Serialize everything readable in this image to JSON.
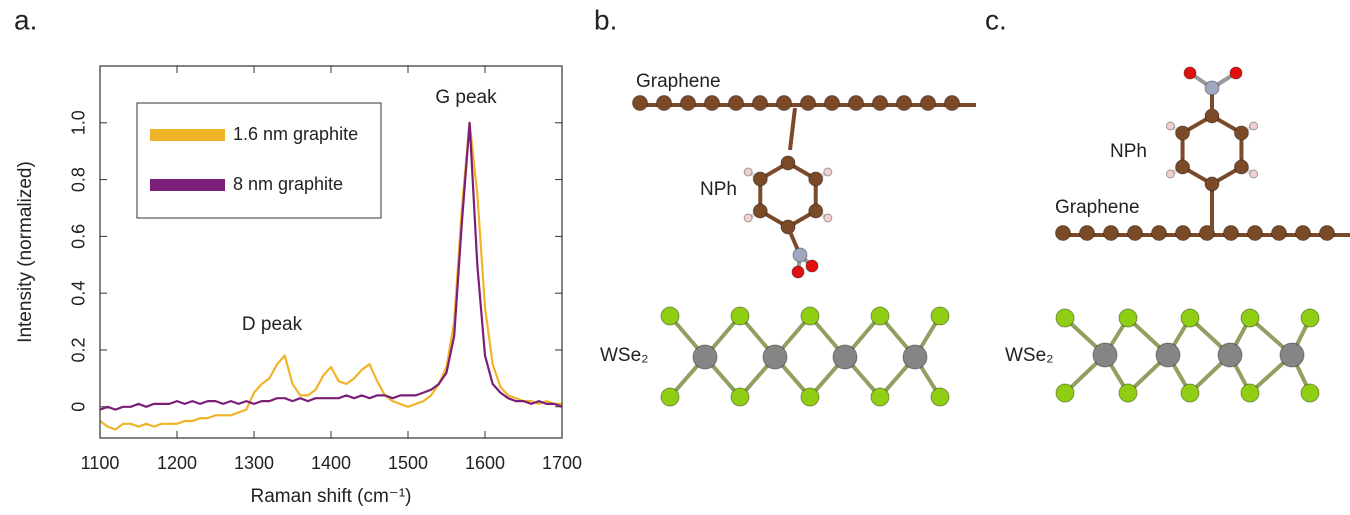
{
  "panel_labels": [
    "a.",
    "b.",
    "c."
  ],
  "panel_b": {
    "labels": [
      "Graphene",
      "NPh",
      "WSe₂"
    ]
  },
  "panel_c": {
    "labels": [
      "NPh",
      "Graphene",
      "WSe₂"
    ]
  },
  "chart_data": {
    "type": "line",
    "xlabel": "Raman shift (cm⁻¹)",
    "ylabel": "Intensity (normalized)",
    "annotations": [
      "D peak",
      "G peak"
    ],
    "x": [
      1100,
      1110,
      1120,
      1130,
      1140,
      1150,
      1160,
      1170,
      1180,
      1190,
      1200,
      1210,
      1220,
      1230,
      1240,
      1250,
      1260,
      1270,
      1280,
      1290,
      1300,
      1310,
      1320,
      1330,
      1340,
      1350,
      1360,
      1370,
      1380,
      1390,
      1400,
      1410,
      1420,
      1430,
      1440,
      1450,
      1460,
      1470,
      1480,
      1490,
      1500,
      1510,
      1520,
      1530,
      1540,
      1550,
      1560,
      1570,
      1580,
      1590,
      1600,
      1610,
      1620,
      1630,
      1640,
      1650,
      1660,
      1670,
      1680,
      1690,
      1700
    ],
    "series": [
      {
        "name": "1.6 nm graphite",
        "color": "#f0b429",
        "values": [
          -0.05,
          -0.07,
          -0.08,
          -0.06,
          -0.06,
          -0.07,
          -0.06,
          -0.07,
          -0.06,
          -0.06,
          -0.06,
          -0.05,
          -0.05,
          -0.04,
          -0.04,
          -0.03,
          -0.03,
          -0.03,
          -0.02,
          -0.01,
          0.05,
          0.08,
          0.1,
          0.15,
          0.18,
          0.08,
          0.04,
          0.04,
          0.06,
          0.11,
          0.14,
          0.09,
          0.08,
          0.1,
          0.13,
          0.15,
          0.09,
          0.04,
          0.02,
          0.01,
          0.0,
          0.01,
          0.02,
          0.04,
          0.08,
          0.14,
          0.3,
          0.7,
          1.0,
          0.75,
          0.35,
          0.15,
          0.07,
          0.04,
          0.03,
          0.02,
          0.02,
          0.01,
          0.02,
          0.01,
          0.01
        ]
      },
      {
        "name": "8 nm graphite",
        "color": "#7a1e78",
        "values": [
          -0.01,
          0.0,
          -0.01,
          0.0,
          0.0,
          0.01,
          0.0,
          0.01,
          0.01,
          0.01,
          0.02,
          0.01,
          0.02,
          0.01,
          0.02,
          0.02,
          0.01,
          0.02,
          0.01,
          0.02,
          0.01,
          0.02,
          0.02,
          0.03,
          0.03,
          0.02,
          0.03,
          0.02,
          0.03,
          0.03,
          0.03,
          0.03,
          0.04,
          0.03,
          0.04,
          0.03,
          0.04,
          0.04,
          0.03,
          0.04,
          0.04,
          0.04,
          0.05,
          0.06,
          0.08,
          0.12,
          0.25,
          0.65,
          1.0,
          0.5,
          0.18,
          0.08,
          0.05,
          0.03,
          0.02,
          0.02,
          0.01,
          0.02,
          0.01,
          0.01,
          0.0
        ]
      }
    ],
    "xlim": [
      1100,
      1700
    ],
    "xticks": [
      1100,
      1200,
      1300,
      1400,
      1500,
      1600,
      1700
    ],
    "ylim": [
      -0.11,
      1.2
    ],
    "yticks": [
      0,
      0.2,
      0.4,
      0.6,
      0.8,
      {
        "value": 1,
        "label": "1.0"
      }
    ],
    "legend": "upper left"
  }
}
